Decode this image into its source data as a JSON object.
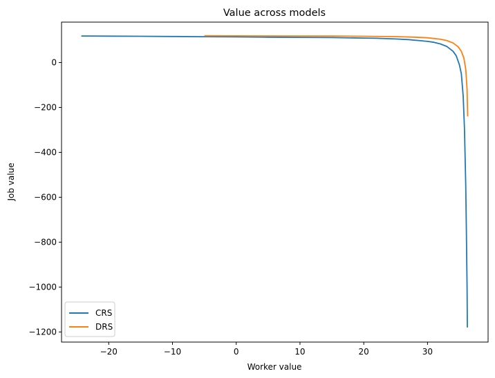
{
  "chart_data": {
    "type": "line",
    "title": "Value across models",
    "xlabel": "Worker value",
    "ylabel": "Job value",
    "xlim": [
      -27.4,
      39.5
    ],
    "ylim": [
      -1245,
      180
    ],
    "xticks": [
      -20,
      -10,
      0,
      10,
      20,
      30
    ],
    "xtick_labels": [
      "−20",
      "−10",
      "0",
      "10",
      "20",
      "30"
    ],
    "yticks": [
      0,
      -200,
      -400,
      -600,
      -800,
      -1000,
      -1200
    ],
    "ytick_labels": [
      "0",
      "−200",
      "−400",
      "−600",
      "−800",
      "−1000",
      "−1200"
    ],
    "grid": false,
    "legend_position": "lower-left",
    "series": [
      {
        "name": "CRS",
        "color": "#1f77b4",
        "x": [
          -24.3,
          -20,
          -15,
          -10,
          -5,
          0,
          5,
          10,
          15,
          20,
          22,
          25,
          27,
          29,
          30,
          31,
          32,
          33,
          34,
          34.5,
          35,
          35.3,
          35.6,
          35.8,
          36.0,
          36.1,
          36.2,
          36.25
        ],
        "y": [
          118,
          117.5,
          116.8,
          116,
          115,
          114,
          113,
          112,
          111,
          109,
          108,
          105,
          102,
          97,
          94,
          90,
          83,
          72,
          50,
          30,
          -10,
          -50,
          -150,
          -300,
          -550,
          -750,
          -1000,
          -1180
        ]
      },
      {
        "name": "DRS",
        "color": "#ff7f0e",
        "x": [
          -5,
          0,
          5,
          10,
          15,
          20,
          25,
          28,
          30,
          32,
          33,
          34,
          34.8,
          35.3,
          35.7,
          36.0,
          36.2,
          36.3
        ],
        "y": [
          119,
          118.8,
          118.5,
          118.2,
          117.8,
          117,
          115.5,
          113,
          110,
          104,
          98,
          87,
          70,
          50,
          20,
          -30,
          -120,
          -240
        ]
      }
    ]
  }
}
